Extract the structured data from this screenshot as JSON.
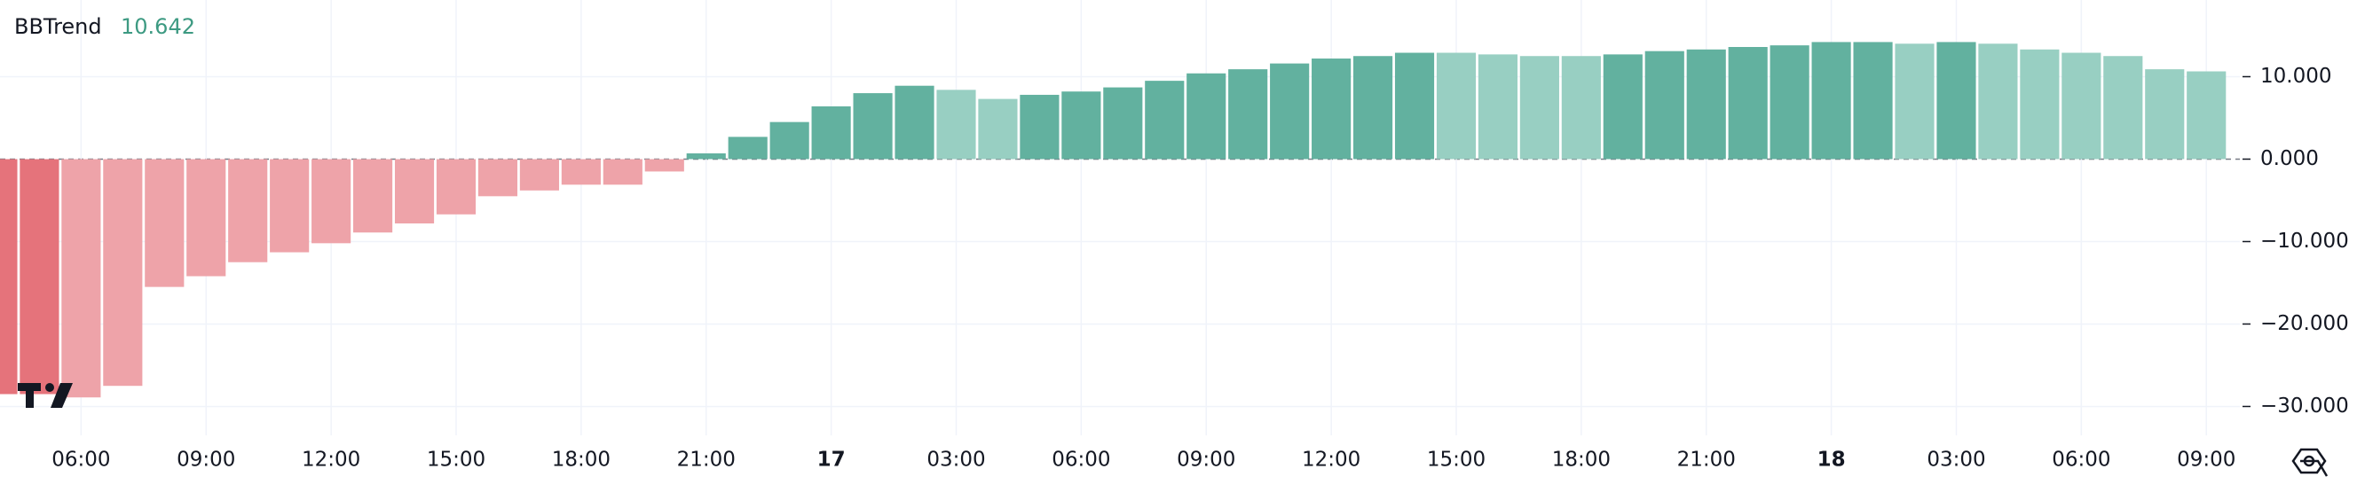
{
  "chart_data": {
    "type": "bar",
    "title": "BBTrend",
    "categories": [
      null,
      null,
      "06:00",
      null,
      null,
      "09:00",
      null,
      null,
      "12:00",
      null,
      null,
      "15:00",
      null,
      null,
      "18:00",
      null,
      null,
      "21:00",
      null,
      null,
      "17",
      null,
      null,
      "03:00",
      null,
      null,
      "06:00",
      null,
      null,
      "09:00",
      null,
      null,
      "12:00",
      null,
      null,
      "15:00",
      null,
      null,
      "18:00",
      null,
      null,
      "21:00",
      null,
      null,
      "18",
      null,
      null,
      "03:00",
      null,
      null,
      "06:00",
      null,
      null,
      "09:00"
    ],
    "values": [
      -28.5,
      -28.5,
      -28.9,
      -27.5,
      -15.5,
      -14.2,
      -12.5,
      -11.3,
      -10.2,
      -8.9,
      -7.8,
      -6.7,
      -4.5,
      -3.8,
      -3.1,
      -3.1,
      -1.5,
      0.7,
      2.7,
      4.5,
      6.4,
      8.0,
      8.9,
      8.4,
      7.3,
      7.8,
      8.2,
      8.7,
      9.5,
      10.4,
      10.9,
      11.6,
      12.2,
      12.5,
      12.9,
      12.9,
      12.7,
      12.5,
      12.5,
      12.7,
      13.1,
      13.3,
      13.6,
      13.8,
      14.2,
      14.2,
      14.0,
      14.2,
      14.0,
      13.3,
      12.9,
      12.5,
      10.9,
      10.642
    ],
    "colors": [
      "#e5737b",
      "#e5737b",
      "#eea3a9",
      "#eea3a9",
      "#eea3a9",
      "#eea3a9",
      "#eea3a9",
      "#eea3a9",
      "#eea3a9",
      "#eea3a9",
      "#eea3a9",
      "#eea3a9",
      "#eea3a9",
      "#eea3a9",
      "#eea3a9",
      "#eea3a9",
      "#eea3a9",
      "#62b19f",
      "#62b19f",
      "#62b19f",
      "#62b19f",
      "#62b19f",
      "#62b19f",
      "#98cfc2",
      "#98cfc2",
      "#62b19f",
      "#62b19f",
      "#62b19f",
      "#62b19f",
      "#62b19f",
      "#62b19f",
      "#62b19f",
      "#62b19f",
      "#62b19f",
      "#62b19f",
      "#98cfc2",
      "#98cfc2",
      "#98cfc2",
      "#98cfc2",
      "#62b19f",
      "#62b19f",
      "#62b19f",
      "#62b19f",
      "#62b19f",
      "#62b19f",
      "#62b19f",
      "#98cfc2",
      "#62b19f",
      "#98cfc2",
      "#98cfc2",
      "#98cfc2",
      "#98cfc2",
      "#98cfc2",
      "#98cfc2"
    ],
    "bold_categories": [
      "17",
      "18"
    ],
    "ylim": [
      -33.5,
      19.3
    ],
    "yticks": [
      {
        "value": 10,
        "label": "10.000"
      },
      {
        "value": 0,
        "label": "0.000"
      },
      {
        "value": -10,
        "label": "−10.000"
      },
      {
        "value": -20,
        "label": "−20.000"
      },
      {
        "value": -30,
        "label": "−30.000"
      }
    ],
    "grid": true,
    "value_color": "#3d9a82"
  }
}
